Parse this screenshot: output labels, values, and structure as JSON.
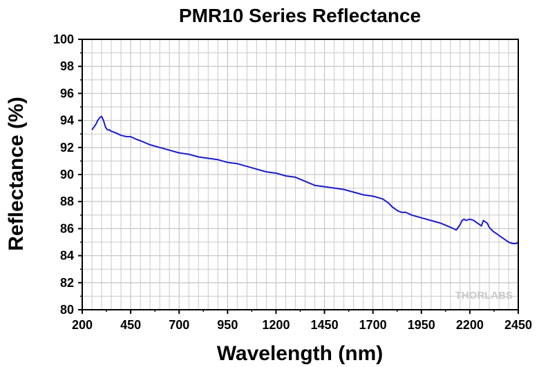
{
  "chart_data": {
    "type": "line",
    "title": "PMR10 Series Reflectance",
    "xlabel": "Wavelength (nm)",
    "ylabel": "Reflectance (%)",
    "xlim": [
      200,
      2450
    ],
    "ylim": [
      80,
      100
    ],
    "xticks": [
      200,
      450,
      700,
      950,
      1200,
      1450,
      1700,
      1950,
      2200,
      2450
    ],
    "yticks": [
      80,
      82,
      84,
      86,
      88,
      90,
      92,
      94,
      96,
      98,
      100
    ],
    "grid": true,
    "legend": "none",
    "watermark": "THORLABS",
    "colors": {
      "series": "#1a1acc",
      "grid": "#c8c8c8",
      "frame": "#000000"
    },
    "series": [
      {
        "x": [
          250,
          260,
          270,
          280,
          290,
          300,
          310,
          320,
          330,
          340,
          350,
          370,
          400,
          430,
          450,
          480,
          500,
          550,
          600,
          650,
          700,
          750,
          800,
          850,
          900,
          950,
          1000,
          1050,
          1100,
          1150,
          1200,
          1250,
          1300,
          1350,
          1400,
          1450,
          1500,
          1550,
          1600,
          1650,
          1700,
          1750,
          1780,
          1800,
          1830,
          1850,
          1870,
          1900,
          1950,
          2000,
          2050,
          2100,
          2130,
          2150,
          2160,
          2170,
          2180,
          2200,
          2220,
          2240,
          2260,
          2270,
          2280,
          2290,
          2300,
          2320,
          2340,
          2360,
          2380,
          2400,
          2420,
          2440,
          2450
        ],
        "y": [
          93.3,
          93.5,
          93.7,
          94.0,
          94.2,
          94.3,
          94.0,
          93.5,
          93.3,
          93.3,
          93.2,
          93.1,
          92.9,
          92.8,
          92.8,
          92.6,
          92.5,
          92.2,
          92.0,
          91.8,
          91.6,
          91.5,
          91.3,
          91.2,
          91.1,
          90.9,
          90.8,
          90.6,
          90.4,
          90.2,
          90.1,
          89.9,
          89.8,
          89.5,
          89.2,
          89.1,
          89.0,
          88.9,
          88.7,
          88.5,
          88.4,
          88.2,
          87.9,
          87.6,
          87.3,
          87.2,
          87.2,
          87.0,
          86.8,
          86.6,
          86.4,
          86.1,
          85.9,
          86.3,
          86.6,
          86.7,
          86.6,
          86.7,
          86.6,
          86.4,
          86.2,
          86.6,
          86.5,
          86.4,
          86.1,
          85.8,
          85.6,
          85.4,
          85.2,
          85.0,
          84.9,
          84.9,
          85.0
        ]
      }
    ]
  }
}
